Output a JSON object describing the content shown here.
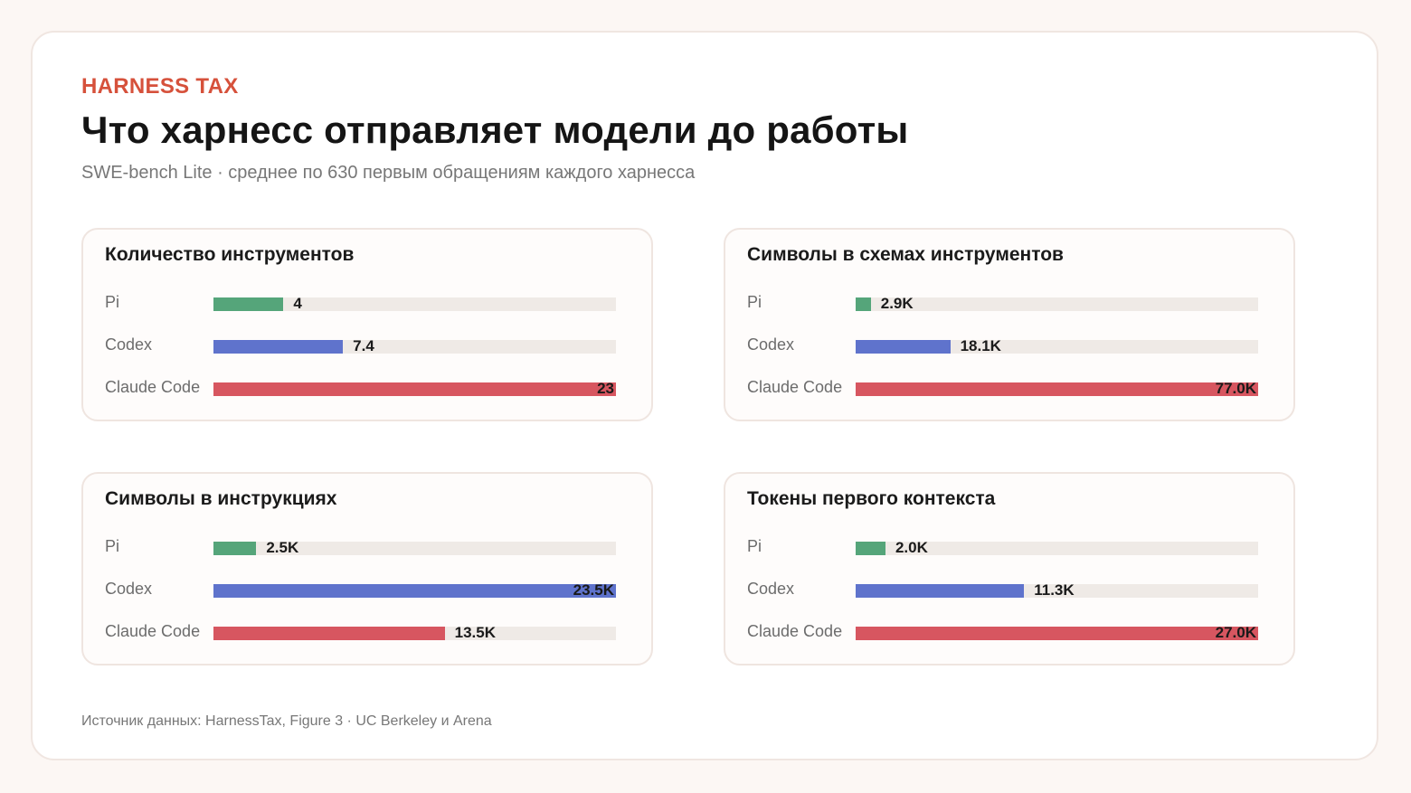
{
  "header": {
    "eyebrow": "HARNESS TAX",
    "title": "Что харнесс отправляет модели до работы",
    "subtitle": "SWE-bench Lite · среднее по 630 первым обращениям каждого харнесса"
  },
  "footer": {
    "source": "Источник данных: HarnessTax, Figure 3 · UC Berkeley и Arena"
  },
  "colors": {
    "Pi": "#55a57a",
    "Codex": "#5f73cc",
    "Claude Code": "#d75660"
  },
  "chart_data": [
    {
      "type": "bar",
      "title": "Количество инструментов",
      "categories": [
        "Pi",
        "Codex",
        "Claude Code"
      ],
      "values": [
        4,
        7.4,
        23
      ],
      "value_labels": [
        "4",
        "7.4",
        "23"
      ],
      "xlim": [
        0,
        23
      ]
    },
    {
      "type": "bar",
      "title": "Символы в схемах инструментов",
      "categories": [
        "Pi",
        "Codex",
        "Claude Code"
      ],
      "values": [
        2900,
        18100,
        77000
      ],
      "value_labels": [
        "2.9K",
        "18.1K",
        "77.0K"
      ],
      "xlim": [
        0,
        77000
      ]
    },
    {
      "type": "bar",
      "title": "Символы в инструкциях",
      "categories": [
        "Pi",
        "Codex",
        "Claude Code"
      ],
      "values": [
        2500,
        23500,
        13500
      ],
      "value_labels": [
        "2.5K",
        "23.5K",
        "13.5K"
      ],
      "xlim": [
        0,
        23500
      ]
    },
    {
      "type": "bar",
      "title": "Токены первого контекста",
      "categories": [
        "Pi",
        "Codex",
        "Claude Code"
      ],
      "values": [
        2000,
        11300,
        27000
      ],
      "value_labels": [
        "2.0K",
        "11.3K",
        "27.0K"
      ],
      "xlim": [
        0,
        27000
      ]
    }
  ]
}
